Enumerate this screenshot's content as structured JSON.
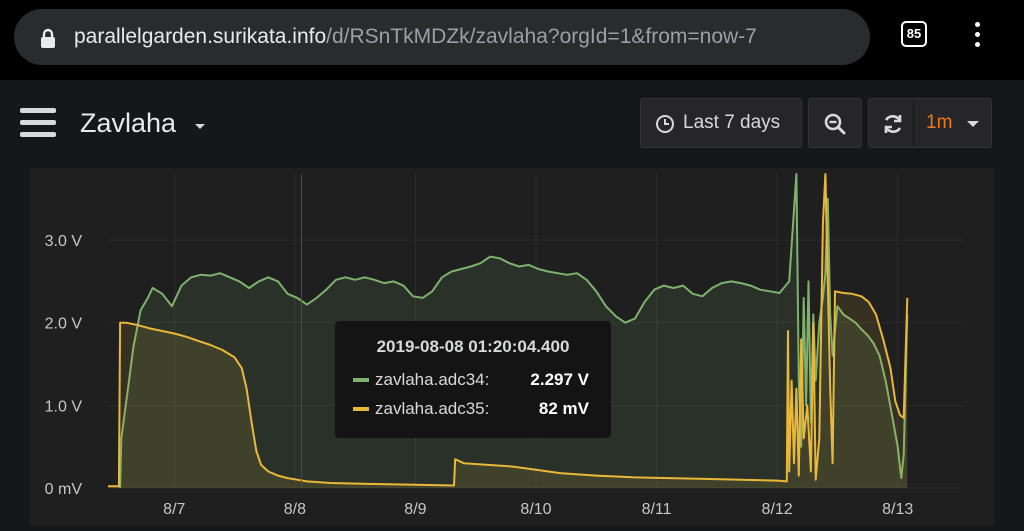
{
  "browser": {
    "url_host": "parallelgarden.surikata.info",
    "url_path": "/d/RSnTkMDZk/zavlaha?orgId=1&from=now-7",
    "tab_count": "85"
  },
  "dashboard": {
    "title": "Zavlaha",
    "time_range_label": "Last 7 days",
    "refresh_interval": "1m"
  },
  "colors": {
    "adc34": "#7eb26d",
    "adc35": "#eab839",
    "crosshair": "#c4162a",
    "refresh_accent": "#eb7b18"
  },
  "tooltip": {
    "time": "2019-08-08 01:20:04.400",
    "rows": [
      {
        "name": "zavlaha.adc34:",
        "value": "2.297 V"
      },
      {
        "name": "zavlaha.adc35:",
        "value": "82 mV"
      }
    ]
  },
  "chart_data": {
    "type": "line",
    "y_ticks": [
      "0 mV",
      "1.0 V",
      "2.0 V",
      "3.0 V"
    ],
    "x_ticks": [
      "8/7",
      "8/8",
      "8/9",
      "8/10",
      "8/11",
      "8/12",
      "8/13"
    ],
    "x_range_days": [
      6.45,
      13.55
    ],
    "y_range_volts": [
      0,
      3.8
    ],
    "grid": true,
    "series": [
      {
        "name": "zavlaha.adc34",
        "color": "#7eb26d",
        "points": [
          [
            6.55,
            0.0
          ],
          [
            6.56,
            0.6
          ],
          [
            6.62,
            1.25
          ],
          [
            6.66,
            1.7
          ],
          [
            6.72,
            2.15
          ],
          [
            6.78,
            2.3
          ],
          [
            6.82,
            2.42
          ],
          [
            6.9,
            2.35
          ],
          [
            6.98,
            2.2
          ],
          [
            7.06,
            2.45
          ],
          [
            7.14,
            2.55
          ],
          [
            7.22,
            2.58
          ],
          [
            7.3,
            2.57
          ],
          [
            7.38,
            2.6
          ],
          [
            7.46,
            2.55
          ],
          [
            7.54,
            2.5
          ],
          [
            7.62,
            2.42
          ],
          [
            7.7,
            2.5
          ],
          [
            7.78,
            2.55
          ],
          [
            7.86,
            2.5
          ],
          [
            7.94,
            2.35
          ],
          [
            8.02,
            2.3
          ],
          [
            8.1,
            2.22
          ],
          [
            8.18,
            2.3
          ],
          [
            8.26,
            2.4
          ],
          [
            8.34,
            2.52
          ],
          [
            8.42,
            2.55
          ],
          [
            8.5,
            2.52
          ],
          [
            8.58,
            2.55
          ],
          [
            8.66,
            2.52
          ],
          [
            8.74,
            2.48
          ],
          [
            8.82,
            2.5
          ],
          [
            8.9,
            2.45
          ],
          [
            8.98,
            2.32
          ],
          [
            9.06,
            2.3
          ],
          [
            9.14,
            2.38
          ],
          [
            9.22,
            2.55
          ],
          [
            9.3,
            2.62
          ],
          [
            9.38,
            2.65
          ],
          [
            9.46,
            2.68
          ],
          [
            9.54,
            2.72
          ],
          [
            9.62,
            2.8
          ],
          [
            9.7,
            2.78
          ],
          [
            9.78,
            2.72
          ],
          [
            9.86,
            2.68
          ],
          [
            9.94,
            2.7
          ],
          [
            10.02,
            2.65
          ],
          [
            10.1,
            2.62
          ],
          [
            10.18,
            2.6
          ],
          [
            10.26,
            2.58
          ],
          [
            10.34,
            2.6
          ],
          [
            10.42,
            2.52
          ],
          [
            10.5,
            2.38
          ],
          [
            10.58,
            2.2
          ],
          [
            10.66,
            2.08
          ],
          [
            10.74,
            2.0
          ],
          [
            10.82,
            2.05
          ],
          [
            10.9,
            2.25
          ],
          [
            10.98,
            2.4
          ],
          [
            11.06,
            2.45
          ],
          [
            11.14,
            2.42
          ],
          [
            11.22,
            2.45
          ],
          [
            11.3,
            2.35
          ],
          [
            11.38,
            2.32
          ],
          [
            11.46,
            2.42
          ],
          [
            11.54,
            2.48
          ],
          [
            11.62,
            2.5
          ],
          [
            11.7,
            2.48
          ],
          [
            11.78,
            2.45
          ],
          [
            11.86,
            2.4
          ],
          [
            11.94,
            2.38
          ],
          [
            12.02,
            2.36
          ],
          [
            12.1,
            2.5
          ],
          [
            12.16,
            3.8
          ],
          [
            12.18,
            1.3
          ],
          [
            12.2,
            0.5
          ],
          [
            12.22,
            2.3
          ],
          [
            12.24,
            1.0
          ],
          [
            12.26,
            2.5
          ],
          [
            12.28,
            0.8
          ],
          [
            12.3,
            2.1
          ],
          [
            12.32,
            1.3
          ],
          [
            12.35,
            2.0
          ],
          [
            12.38,
            2.3
          ],
          [
            12.4,
            2.6
          ],
          [
            12.42,
            3.5
          ],
          [
            12.44,
            2.1
          ],
          [
            12.46,
            1.6
          ],
          [
            12.5,
            2.2
          ],
          [
            12.55,
            2.1
          ],
          [
            12.6,
            2.05
          ],
          [
            12.65,
            2.0
          ],
          [
            12.7,
            1.92
          ],
          [
            12.75,
            1.85
          ],
          [
            12.8,
            1.75
          ],
          [
            12.85,
            1.6
          ],
          [
            12.9,
            1.3
          ],
          [
            12.95,
            0.9
          ],
          [
            13.0,
            0.5
          ],
          [
            13.03,
            0.12
          ],
          [
            13.05,
            0.4
          ],
          [
            13.08,
            2.1
          ]
        ]
      },
      {
        "name": "zavlaha.adc35",
        "color": "#eab839",
        "points": [
          [
            6.45,
            0.02
          ],
          [
            6.54,
            0.02
          ],
          [
            6.55,
            2.0
          ],
          [
            6.6,
            2.0
          ],
          [
            6.7,
            1.97
          ],
          [
            6.8,
            1.93
          ],
          [
            6.9,
            1.9
          ],
          [
            7.0,
            1.87
          ],
          [
            7.1,
            1.83
          ],
          [
            7.2,
            1.78
          ],
          [
            7.3,
            1.73
          ],
          [
            7.4,
            1.67
          ],
          [
            7.5,
            1.58
          ],
          [
            7.56,
            1.45
          ],
          [
            7.6,
            1.2
          ],
          [
            7.64,
            0.8
          ],
          [
            7.68,
            0.45
          ],
          [
            7.72,
            0.28
          ],
          [
            7.78,
            0.2
          ],
          [
            7.86,
            0.15
          ],
          [
            7.94,
            0.12
          ],
          [
            8.02,
            0.1
          ],
          [
            8.1,
            0.08
          ],
          [
            8.3,
            0.06
          ],
          [
            8.6,
            0.05
          ],
          [
            9.0,
            0.04
          ],
          [
            9.32,
            0.03
          ],
          [
            9.33,
            0.35
          ],
          [
            9.4,
            0.3
          ],
          [
            9.6,
            0.28
          ],
          [
            9.8,
            0.26
          ],
          [
            10.0,
            0.22
          ],
          [
            10.2,
            0.18
          ],
          [
            10.5,
            0.15
          ],
          [
            10.8,
            0.13
          ],
          [
            11.1,
            0.12
          ],
          [
            11.4,
            0.11
          ],
          [
            11.7,
            0.1
          ],
          [
            12.0,
            0.09
          ],
          [
            12.08,
            0.08
          ],
          [
            12.09,
            1.9
          ],
          [
            12.1,
            0.2
          ],
          [
            12.12,
            1.3
          ],
          [
            12.14,
            0.3
          ],
          [
            12.16,
            1.2
          ],
          [
            12.18,
            0.15
          ],
          [
            12.2,
            1.8
          ],
          [
            12.22,
            0.6
          ],
          [
            12.25,
            1.0
          ],
          [
            12.28,
            0.2
          ],
          [
            12.3,
            2.0
          ],
          [
            12.32,
            0.1
          ],
          [
            12.35,
            0.6
          ],
          [
            12.38,
            3.2
          ],
          [
            12.4,
            3.8
          ],
          [
            12.42,
            2.5
          ],
          [
            12.44,
            1.2
          ],
          [
            12.46,
            0.3
          ],
          [
            12.48,
            2.38
          ],
          [
            12.55,
            2.36
          ],
          [
            12.62,
            2.35
          ],
          [
            12.7,
            2.32
          ],
          [
            12.76,
            2.25
          ],
          [
            12.82,
            2.1
          ],
          [
            12.88,
            1.8
          ],
          [
            12.94,
            1.45
          ],
          [
            12.98,
            1.05
          ],
          [
            13.02,
            0.88
          ],
          [
            13.05,
            0.85
          ],
          [
            13.08,
            2.3
          ]
        ]
      }
    ],
    "crosshair_x": 8.055
  }
}
